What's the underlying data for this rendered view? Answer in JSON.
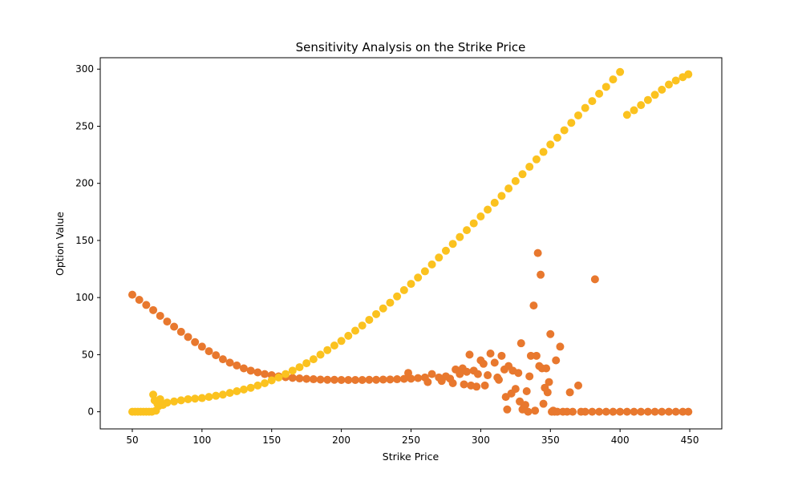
{
  "chart_data": {
    "type": "scatter",
    "title": "Sensitivity Analysis on the Strike Price",
    "xlabel": "Strike Price",
    "ylabel": "Option Value",
    "xlim": [
      27,
      473
    ],
    "ylim": [
      -15,
      310
    ],
    "x_ticks": [
      50,
      100,
      150,
      200,
      250,
      300,
      350,
      400,
      450
    ],
    "y_ticks": [
      0,
      50,
      100,
      150,
      200,
      250,
      300
    ],
    "grid": false,
    "legend": "none",
    "colors": {
      "series_1": "#e8782e",
      "series_2": "#fbc21f"
    },
    "series": [
      {
        "color": "#e8782e",
        "points": [
          [
            50,
            102.5
          ],
          [
            55,
            98
          ],
          [
            60,
            93.5
          ],
          [
            65,
            89
          ],
          [
            70,
            84
          ],
          [
            75,
            79
          ],
          [
            80,
            74.5
          ],
          [
            85,
            70
          ],
          [
            90,
            65.5
          ],
          [
            95,
            61
          ],
          [
            100,
            57
          ],
          [
            105,
            53
          ],
          [
            110,
            49.5
          ],
          [
            115,
            46
          ],
          [
            120,
            43
          ],
          [
            125,
            40.5
          ],
          [
            130,
            38
          ],
          [
            135,
            36
          ],
          [
            140,
            34.5
          ],
          [
            145,
            33
          ],
          [
            150,
            32
          ],
          [
            155,
            31
          ],
          [
            160,
            30.3
          ],
          [
            165,
            29.7
          ],
          [
            170,
            29.2
          ],
          [
            175,
            28.8
          ],
          [
            180,
            28.5
          ],
          [
            185,
            28.2
          ],
          [
            190,
            28
          ],
          [
            195,
            28
          ],
          [
            200,
            27.8
          ],
          [
            205,
            27.8
          ],
          [
            210,
            27.8
          ],
          [
            215,
            27.8
          ],
          [
            220,
            28
          ],
          [
            225,
            28
          ],
          [
            230,
            28.2
          ],
          [
            235,
            28.3
          ],
          [
            240,
            28.5
          ],
          [
            245,
            28.8
          ],
          [
            248,
            34
          ],
          [
            250,
            29
          ],
          [
            255,
            29.5
          ],
          [
            260,
            30
          ],
          [
            262,
            26
          ],
          [
            265,
            33
          ],
          [
            270,
            30
          ],
          [
            272,
            27
          ],
          [
            275,
            31
          ],
          [
            278,
            29
          ],
          [
            280,
            25
          ],
          [
            282,
            37
          ],
          [
            285,
            33
          ],
          [
            287,
            38
          ],
          [
            288,
            24
          ],
          [
            290,
            35
          ],
          [
            292,
            50
          ],
          [
            293,
            23
          ],
          [
            295,
            36
          ],
          [
            297,
            22
          ],
          [
            298,
            33
          ],
          [
            300,
            45
          ],
          [
            302,
            42
          ],
          [
            303,
            23
          ],
          [
            305,
            32
          ],
          [
            307,
            51
          ],
          [
            310,
            43
          ],
          [
            312,
            30
          ],
          [
            313,
            28
          ],
          [
            315,
            49
          ],
          [
            317,
            37
          ],
          [
            318,
            13
          ],
          [
            319,
            2
          ],
          [
            320,
            40
          ],
          [
            322,
            16
          ],
          [
            323,
            36
          ],
          [
            325,
            20
          ],
          [
            327,
            34
          ],
          [
            328,
            9
          ],
          [
            329,
            60
          ],
          [
            330,
            2
          ],
          [
            331,
            4
          ],
          [
            332,
            6
          ],
          [
            333,
            18
          ],
          [
            334,
            0
          ],
          [
            335,
            31
          ],
          [
            336,
            49
          ],
          [
            338,
            93
          ],
          [
            339,
            1
          ],
          [
            340,
            49
          ],
          [
            341,
            139
          ],
          [
            342,
            40
          ],
          [
            343,
            120
          ],
          [
            344,
            38
          ],
          [
            345,
            7
          ],
          [
            346,
            21
          ],
          [
            347,
            38
          ],
          [
            348,
            17
          ],
          [
            349,
            26
          ],
          [
            350,
            68
          ],
          [
            351,
            0
          ],
          [
            352,
            1
          ],
          [
            353,
            0
          ],
          [
            354,
            45
          ],
          [
            355,
            0
          ],
          [
            357,
            57
          ],
          [
            359,
            0
          ],
          [
            362,
            0
          ],
          [
            364,
            17
          ],
          [
            366,
            0
          ],
          [
            370,
            23
          ],
          [
            372,
            0
          ],
          [
            375,
            0
          ],
          [
            380,
            0
          ],
          [
            382,
            116
          ],
          [
            385,
            0
          ],
          [
            390,
            0
          ],
          [
            395,
            0
          ],
          [
            400,
            0
          ],
          [
            405,
            0
          ],
          [
            410,
            0
          ],
          [
            415,
            0
          ],
          [
            420,
            0
          ],
          [
            425,
            0
          ],
          [
            430,
            0
          ],
          [
            435,
            0
          ],
          [
            440,
            0
          ],
          [
            445,
            0
          ],
          [
            449,
            0
          ]
        ]
      },
      {
        "color": "#fbc21f",
        "points": [
          [
            50,
            0
          ],
          [
            52,
            0
          ],
          [
            54,
            0
          ],
          [
            56,
            0
          ],
          [
            58,
            0
          ],
          [
            60,
            0
          ],
          [
            62,
            0
          ],
          [
            64,
            0
          ],
          [
            65,
            15
          ],
          [
            66,
            10
          ],
          [
            67,
            1
          ],
          [
            68,
            7
          ],
          [
            69,
            5
          ],
          [
            70,
            11
          ],
          [
            72,
            6
          ],
          [
            75,
            8
          ],
          [
            80,
            9
          ],
          [
            85,
            10
          ],
          [
            90,
            11
          ],
          [
            95,
            11.5
          ],
          [
            100,
            12
          ],
          [
            105,
            13
          ],
          [
            110,
            14
          ],
          [
            115,
            15
          ],
          [
            120,
            16.5
          ],
          [
            125,
            18
          ],
          [
            130,
            19.5
          ],
          [
            135,
            21
          ],
          [
            140,
            23
          ],
          [
            145,
            25
          ],
          [
            150,
            27.5
          ],
          [
            155,
            30
          ],
          [
            160,
            33
          ],
          [
            165,
            36
          ],
          [
            170,
            39
          ],
          [
            175,
            42.5
          ],
          [
            180,
            46
          ],
          [
            185,
            50
          ],
          [
            190,
            54
          ],
          [
            195,
            58
          ],
          [
            200,
            62
          ],
          [
            205,
            66.5
          ],
          [
            210,
            71
          ],
          [
            215,
            75.5
          ],
          [
            220,
            80.5
          ],
          [
            225,
            85.5
          ],
          [
            230,
            90.5
          ],
          [
            235,
            95.5
          ],
          [
            240,
            101
          ],
          [
            245,
            106.5
          ],
          [
            250,
            112
          ],
          [
            255,
            117.5
          ],
          [
            260,
            123
          ],
          [
            265,
            129
          ],
          [
            270,
            135
          ],
          [
            275,
            141
          ],
          [
            280,
            147
          ],
          [
            285,
            153
          ],
          [
            290,
            159
          ],
          [
            295,
            165
          ],
          [
            300,
            171
          ],
          [
            305,
            177
          ],
          [
            310,
            183
          ],
          [
            315,
            189
          ],
          [
            320,
            195.5
          ],
          [
            325,
            202
          ],
          [
            330,
            208
          ],
          [
            335,
            214.5
          ],
          [
            340,
            221
          ],
          [
            345,
            227.5
          ],
          [
            350,
            234
          ],
          [
            355,
            240
          ],
          [
            360,
            246.5
          ],
          [
            365,
            253
          ],
          [
            370,
            259.5
          ],
          [
            375,
            266
          ],
          [
            380,
            272
          ],
          [
            385,
            278.5
          ],
          [
            390,
            284.5
          ],
          [
            395,
            291
          ],
          [
            400,
            297.5
          ],
          [
            405,
            260
          ],
          [
            410,
            264
          ],
          [
            415,
            268.5
          ],
          [
            420,
            273
          ],
          [
            425,
            277.5
          ],
          [
            430,
            282
          ],
          [
            435,
            286.5
          ],
          [
            440,
            290
          ],
          [
            445,
            293
          ],
          [
            449,
            295.5
          ]
        ]
      }
    ]
  }
}
